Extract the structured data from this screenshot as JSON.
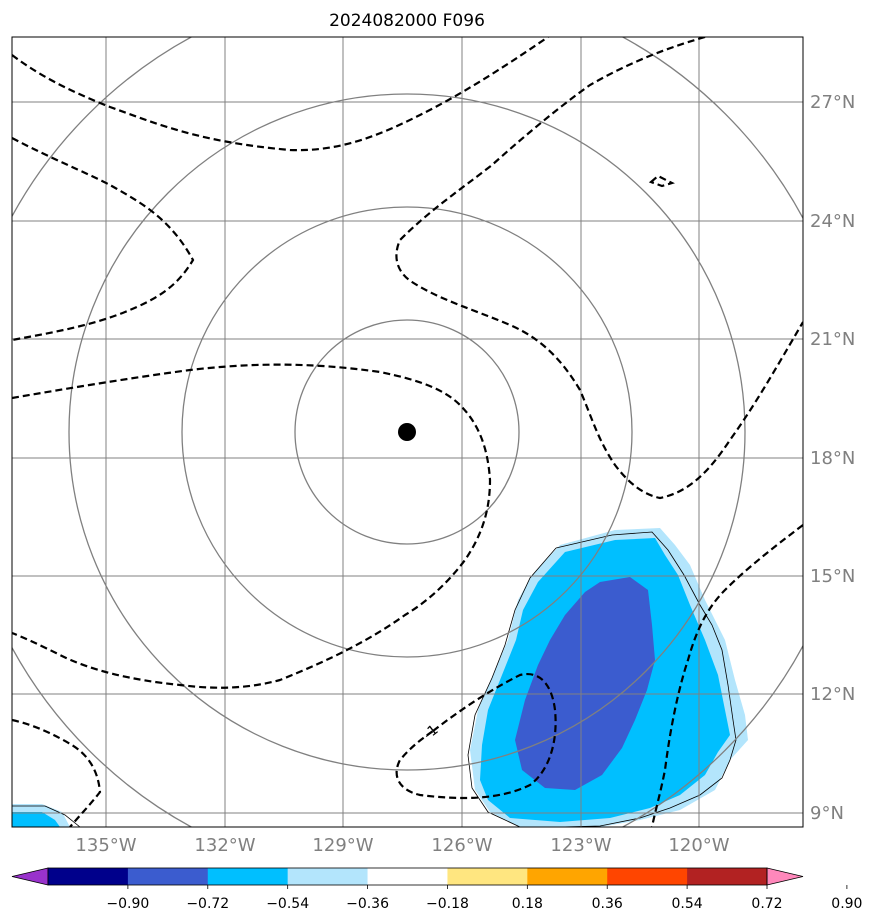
{
  "title": "2024082000 F096",
  "map": {
    "lon_ticks": [
      "135°W",
      "132°W",
      "129°W",
      "126°W",
      "123°W",
      "120°W"
    ],
    "lat_ticks": [
      "27°N",
      "24°N",
      "21°N",
      "18°N",
      "15°N",
      "12°N",
      "9°N"
    ],
    "extent": {
      "lon_min": -136.3,
      "lon_max": -116.3,
      "lat_min": 8.6,
      "lat_max": 28.6
    },
    "storm_center": {
      "lon": -127.3,
      "lat": 18.7
    },
    "contour_label": "-1",
    "colors": {
      "grid": "#808080",
      "contour": "#000000",
      "fill_light": "#b3e5fc",
      "fill_mid": "#00bfff",
      "fill_dark": "#3b5ccf"
    }
  },
  "colorbar": {
    "tick_labels": [
      "−0.90",
      "−0.72",
      "−0.54",
      "−0.36",
      "−0.18",
      "0.18",
      "0.36",
      "0.54",
      "0.72",
      "0.90"
    ],
    "colors": [
      "#9932cc",
      "#00008b",
      "#3b5ccf",
      "#00bfff",
      "#b3e5fc",
      "#ffffff",
      "#ffe680",
      "#ffa500",
      "#ff4500",
      "#b22222",
      "#ff88bb"
    ]
  }
}
